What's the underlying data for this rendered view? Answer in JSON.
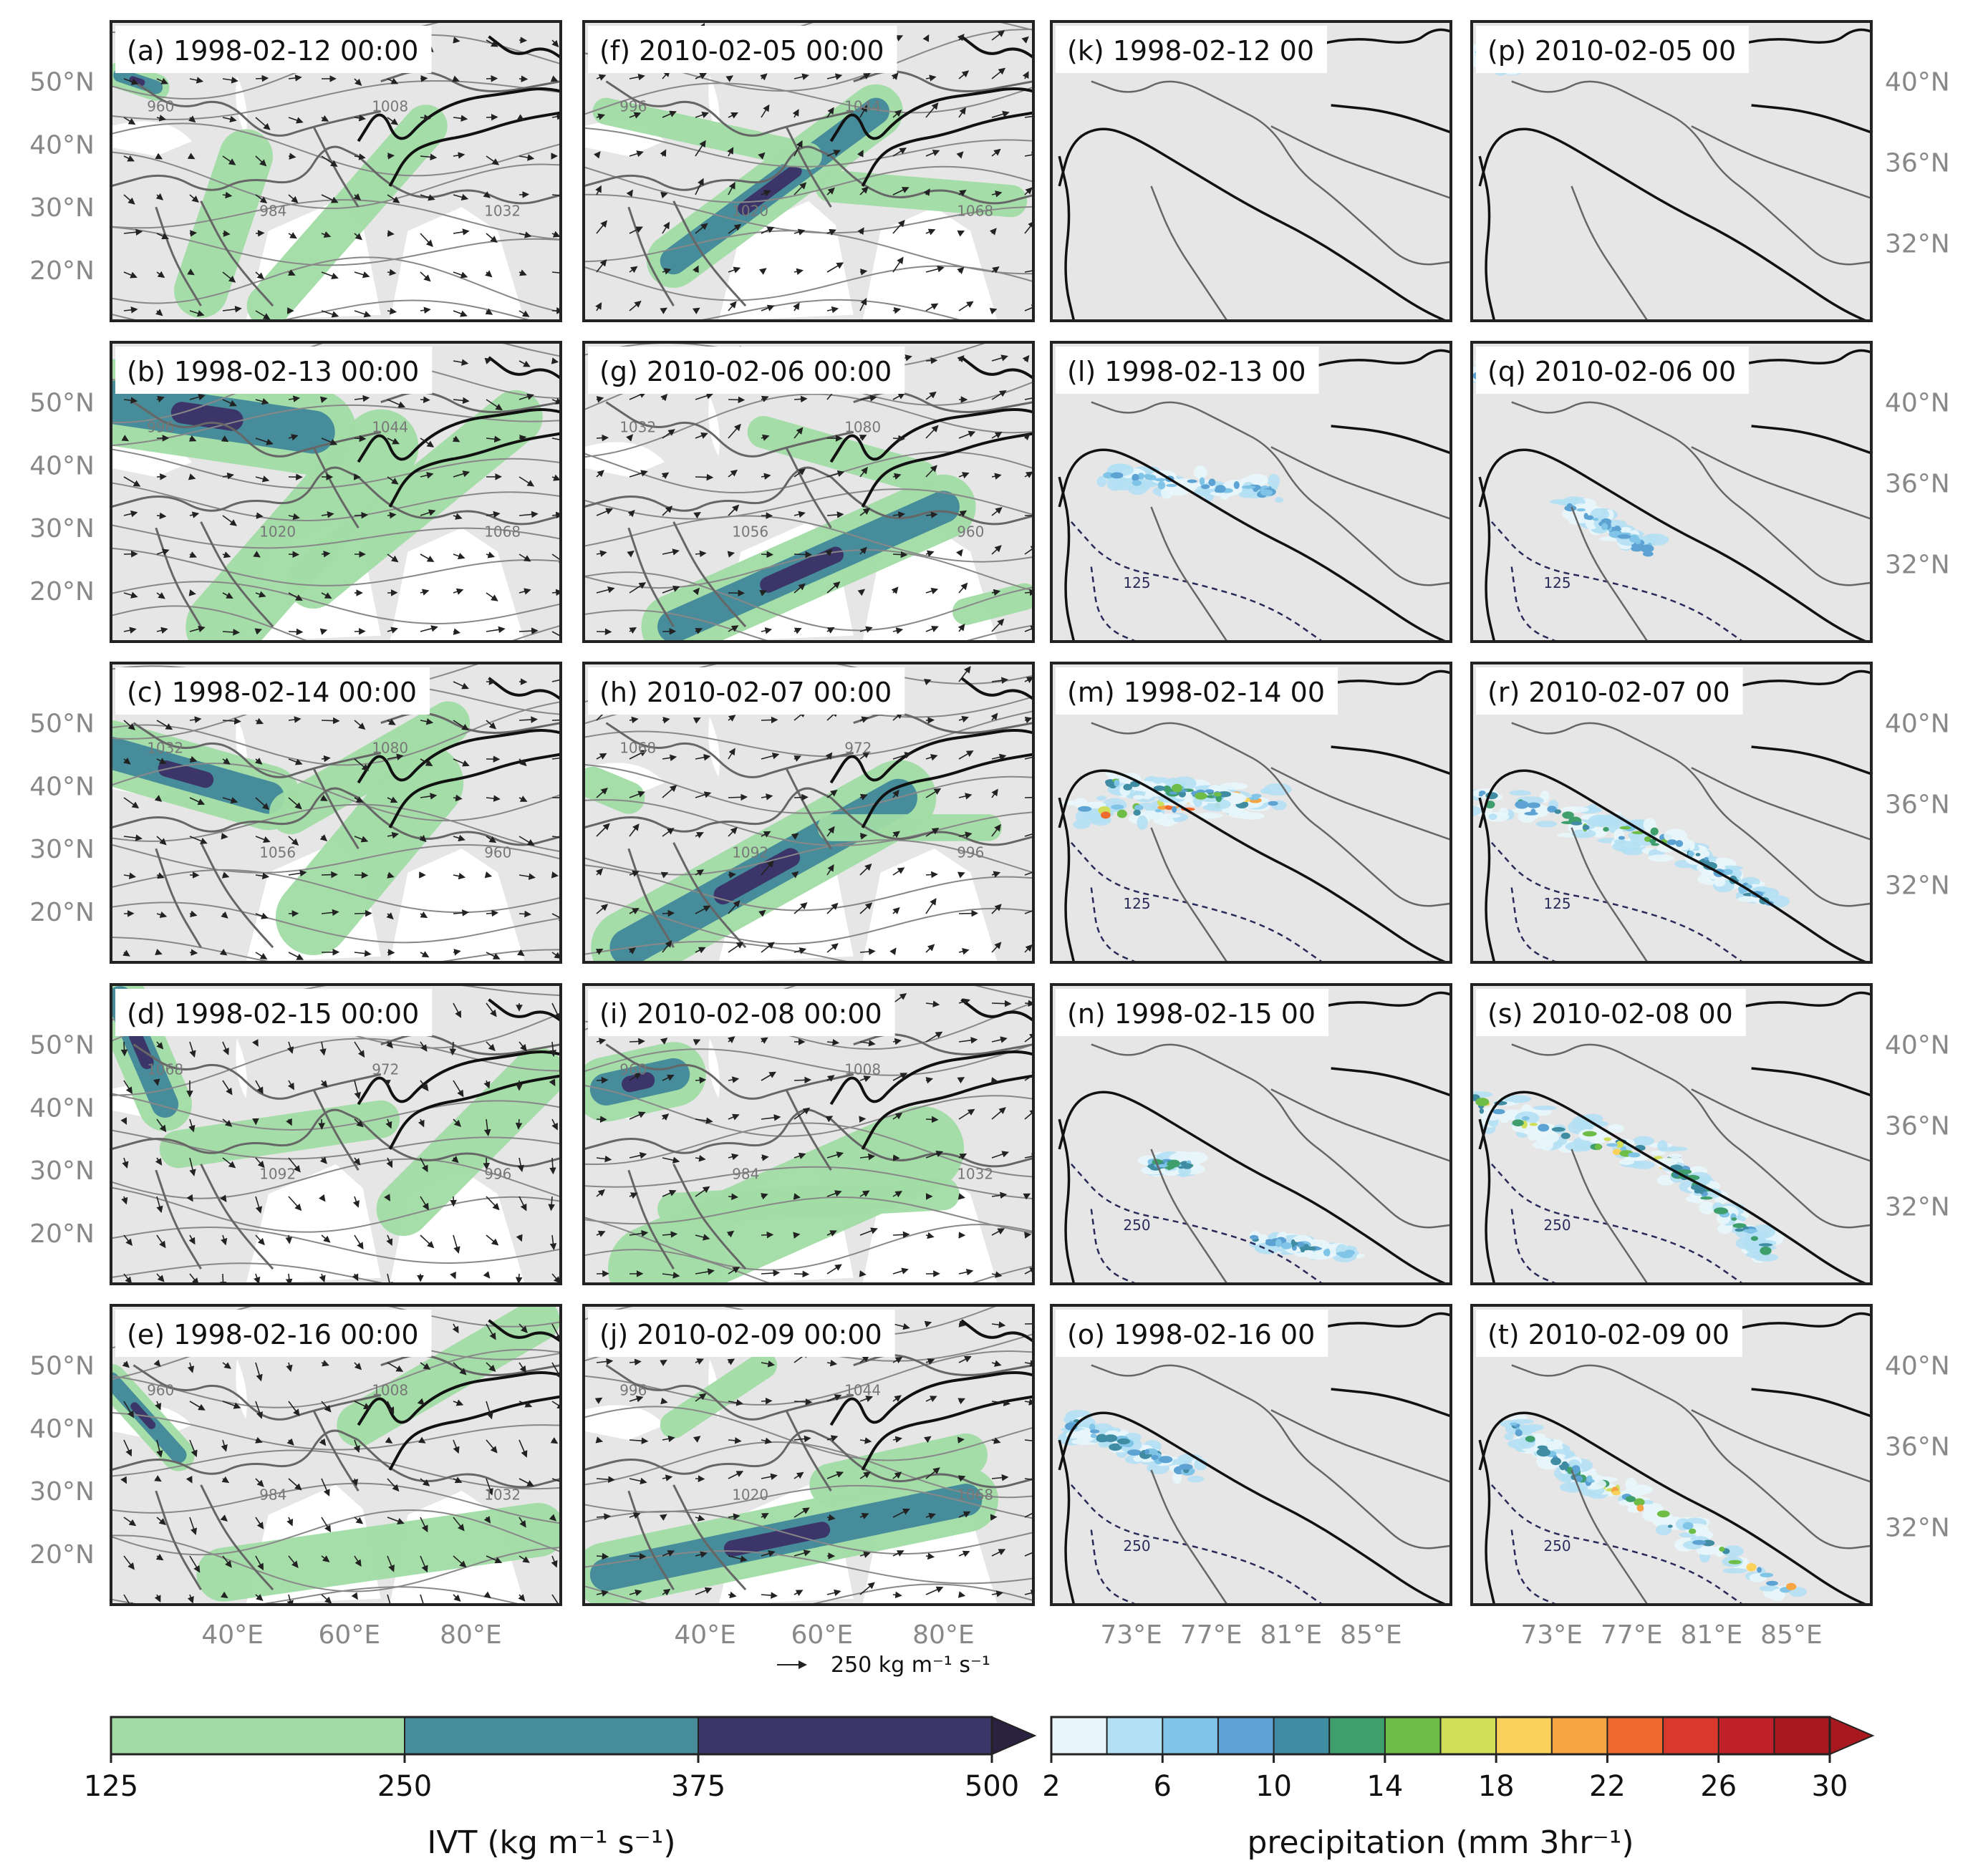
{
  "panels": {
    "ivt_1998": [
      {
        "label": "(a) 1998-02-12 00:00"
      },
      {
        "label": "(b) 1998-02-13 00:00"
      },
      {
        "label": "(c) 1998-02-14 00:00"
      },
      {
        "label": "(d) 1998-02-15 00:00"
      },
      {
        "label": "(e) 1998-02-16 00:00"
      }
    ],
    "ivt_2010": [
      {
        "label": "(f) 2010-02-05 00:00"
      },
      {
        "label": "(g) 2010-02-06 00:00"
      },
      {
        "label": "(h) 2010-02-07 00:00"
      },
      {
        "label": "(i) 2010-02-08 00:00"
      },
      {
        "label": "(j) 2010-02-09 00:00"
      }
    ],
    "precip_1998": [
      {
        "label": "(k) 1998-02-12 00"
      },
      {
        "label": "(l) 1998-02-13 00"
      },
      {
        "label": "(m) 1998-02-14 00"
      },
      {
        "label": "(n) 1998-02-15 00"
      },
      {
        "label": "(o) 1998-02-16 00"
      }
    ],
    "precip_2010": [
      {
        "label": "(p) 2010-02-05 00"
      },
      {
        "label": "(q) 2010-02-06 00"
      },
      {
        "label": "(r) 2010-02-07 00"
      },
      {
        "label": "(s) 2010-02-08 00"
      },
      {
        "label": "(t) 2010-02-09 00"
      }
    ]
  },
  "axes": {
    "ivt_lat_ticks": [
      "50°N",
      "40°N",
      "30°N",
      "20°N"
    ],
    "ivt_lon_ticks": [
      "40°E",
      "60°E",
      "80°E"
    ],
    "precip_lat_ticks": [
      "40°N",
      "36°N",
      "32°N"
    ],
    "precip_lon_ticks": [
      "73°E",
      "77°E",
      "81°E",
      "85°E"
    ]
  },
  "isobar_labels": [
    "960",
    "972",
    "984",
    "996",
    "1008",
    "1020",
    "1032",
    "1044",
    "1056",
    "1068",
    "1080",
    "1092"
  ],
  "precip_contour_labels": [
    "125",
    "250"
  ],
  "reference_vector": {
    "label": "250 kg m⁻¹ s⁻¹"
  },
  "colorbars": {
    "ivt": {
      "label": "IVT (kg m⁻¹ s⁻¹)",
      "ticks": [
        "125",
        "250",
        "375",
        "500"
      ],
      "colors": [
        "#a1dca5",
        "#468c9a",
        "#3b3569"
      ],
      "extend_color": "#2b2240"
    },
    "precip": {
      "label": "precipitation (mm 3hr⁻¹)",
      "ticks": [
        "2",
        "6",
        "10",
        "14",
        "18",
        "22",
        "26",
        "30"
      ],
      "colors": [
        "#e8f6fb",
        "#b4e0f4",
        "#80c4e8",
        "#5ca2d2",
        "#3f8ca3",
        "#3e9f6d",
        "#6dbd46",
        "#cfdf5a",
        "#fad15a",
        "#f7a443",
        "#ef6a2e",
        "#d9382a",
        "#c0202a",
        "#a8191f"
      ],
      "extend_color": "#a8191f"
    }
  },
  "colors": {
    "land": "#e6e6e6",
    "ocean": "#ffffff",
    "frame": "#222222",
    "isobar": "#888888",
    "border": "#666666",
    "terrain": "#111111",
    "ivt_light": "#a1dca5",
    "ivt_mid": "#468c9a",
    "ivt_dark": "#3b3569"
  }
}
